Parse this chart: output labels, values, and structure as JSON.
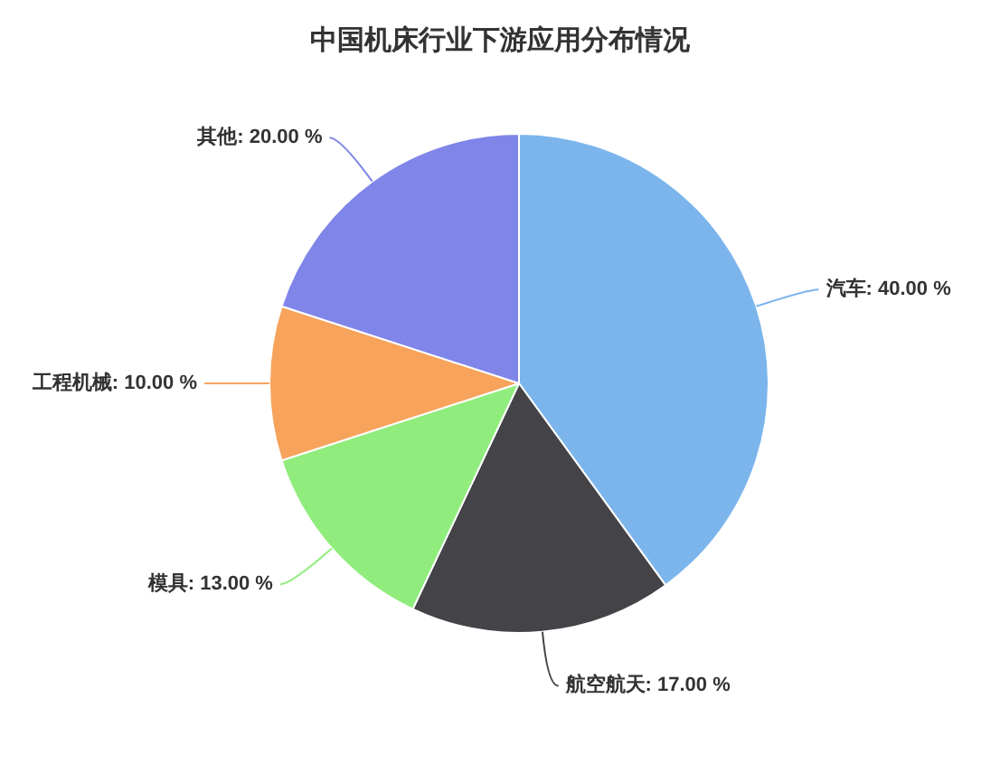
{
  "chart_data": {
    "type": "pie",
    "title": "中国机床行业下游应用分布情况",
    "categories": [
      "汽车",
      "航空航天",
      "模具",
      "工程机械",
      "其他"
    ],
    "values": [
      40,
      17,
      13,
      10,
      20
    ],
    "colors": [
      "#7cb5ec",
      "#434348",
      "#90ed7d",
      "#f7a35c",
      "#8085e9"
    ],
    "value_labels": [
      "40.00 %",
      "17.00 %",
      "13.00 %",
      "10.00 %",
      "20.00 %"
    ]
  }
}
